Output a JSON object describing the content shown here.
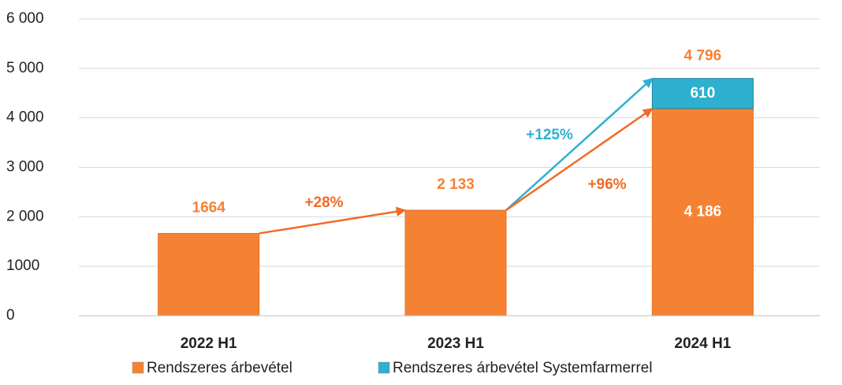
{
  "chart_data": {
    "type": "stacked_bar",
    "categories": [
      "2022 H1",
      "2023 H1",
      "2024 H1"
    ],
    "series": [
      {
        "name": "Rendszeres árbevétel",
        "color": "#f58233",
        "values": [
          1664,
          2133,
          4186
        ],
        "value_labels": [
          "1664",
          "2 133",
          "4 186"
        ]
      },
      {
        "name": "Rendszeres árbevétel Systemfarmerrel",
        "color": "#2eb0d0",
        "values": [
          null,
          null,
          610
        ],
        "value_labels": [
          null,
          null,
          "610"
        ]
      }
    ],
    "totals": [
      null,
      null,
      4796
    ],
    "total_labels": [
      null,
      null,
      "4 796"
    ],
    "annotations": [
      {
        "text": "+28%",
        "color": "#f06a28"
      },
      {
        "text": "+125%",
        "color": "#2eb0d0"
      },
      {
        "text": "+96%",
        "color": "#f06a28"
      }
    ],
    "ylim": [
      0,
      6000
    ],
    "yticks": [
      0,
      1000,
      {
        "value": 2000,
        "label": "2 000"
      },
      {
        "value": 3000,
        "label": "3 000"
      },
      {
        "value": 4000,
        "label": "4 000"
      },
      {
        "value": 5000,
        "label": "5 000"
      },
      {
        "value": 6000,
        "label": "6 000"
      }
    ],
    "grid": true
  }
}
